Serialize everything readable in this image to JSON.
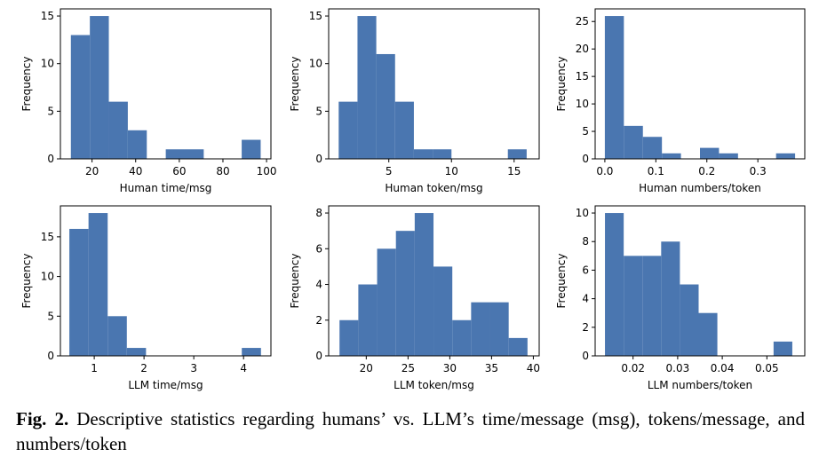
{
  "caption": {
    "label": "Fig. 2.",
    "text": "Descriptive statistics regarding humans’ vs. LLM’s time/message (msg), tokens/message, and numbers/token"
  },
  "colors": {
    "bar": "#4a76b0",
    "axis": "#000000"
  },
  "chart_data": [
    {
      "type": "bar",
      "subtype": "histogram",
      "xlabel": "Human time/msg",
      "ylabel": "Frequency",
      "xlim": [
        5.5,
        102
      ],
      "ylim": [
        0,
        15.75
      ],
      "xticks": [
        20,
        40,
        60,
        80,
        100
      ],
      "yticks": [
        0,
        5,
        10,
        15
      ],
      "bins": [
        {
          "x0": 10.3,
          "x1": 19.0,
          "value": 13
        },
        {
          "x0": 19.0,
          "x1": 27.7,
          "value": 15
        },
        {
          "x0": 27.7,
          "x1": 36.4,
          "value": 6
        },
        {
          "x0": 36.4,
          "x1": 45.1,
          "value": 3
        },
        {
          "x0": 45.1,
          "x1": 53.8,
          "value": 0
        },
        {
          "x0": 53.8,
          "x1": 62.5,
          "value": 1
        },
        {
          "x0": 62.5,
          "x1": 71.2,
          "value": 1
        },
        {
          "x0": 71.2,
          "x1": 79.9,
          "value": 0
        },
        {
          "x0": 79.9,
          "x1": 88.6,
          "value": 0
        },
        {
          "x0": 88.6,
          "x1": 97.3,
          "value": 2
        }
      ]
    },
    {
      "type": "bar",
      "subtype": "histogram",
      "xlabel": "Human token/msg",
      "ylabel": "Frequency",
      "xlim": [
        0.2,
        17.0
      ],
      "ylim": [
        0,
        15.75
      ],
      "xticks": [
        5,
        10,
        15
      ],
      "yticks": [
        0,
        5,
        10,
        15
      ],
      "bins": [
        {
          "x0": 1.0,
          "x1": 2.5,
          "value": 6
        },
        {
          "x0": 2.5,
          "x1": 4.0,
          "value": 15
        },
        {
          "x0": 4.0,
          "x1": 5.5,
          "value": 11
        },
        {
          "x0": 5.5,
          "x1": 7.0,
          "value": 6
        },
        {
          "x0": 7.0,
          "x1": 8.5,
          "value": 1
        },
        {
          "x0": 8.5,
          "x1": 10.0,
          "value": 1
        },
        {
          "x0": 10.0,
          "x1": 11.5,
          "value": 0
        },
        {
          "x0": 11.5,
          "x1": 13.0,
          "value": 0
        },
        {
          "x0": 13.0,
          "x1": 14.5,
          "value": 0
        },
        {
          "x0": 14.5,
          "x1": 16.0,
          "value": 1
        }
      ]
    },
    {
      "type": "bar",
      "subtype": "histogram",
      "xlabel": "Human numbers/token",
      "ylabel": "Frequency",
      "xlim": [
        -0.019,
        0.392
      ],
      "ylim": [
        0,
        27.3
      ],
      "xticks": [
        0.0,
        0.1,
        0.2,
        0.3
      ],
      "yticks": [
        0,
        5,
        10,
        15,
        20,
        25
      ],
      "tick_format": 1,
      "bins": [
        {
          "x0": 0.0,
          "x1": 0.0373,
          "value": 26
        },
        {
          "x0": 0.0373,
          "x1": 0.0746,
          "value": 6
        },
        {
          "x0": 0.0746,
          "x1": 0.1119,
          "value": 4
        },
        {
          "x0": 0.1119,
          "x1": 0.1492,
          "value": 1
        },
        {
          "x0": 0.1492,
          "x1": 0.1865,
          "value": 0
        },
        {
          "x0": 0.1865,
          "x1": 0.2238,
          "value": 2
        },
        {
          "x0": 0.2238,
          "x1": 0.2611,
          "value": 1
        },
        {
          "x0": 0.2611,
          "x1": 0.2984,
          "value": 0
        },
        {
          "x0": 0.2984,
          "x1": 0.3357,
          "value": 0
        },
        {
          "x0": 0.3357,
          "x1": 0.373,
          "value": 1
        }
      ]
    },
    {
      "type": "bar",
      "subtype": "histogram",
      "xlabel": "LLM time/msg",
      "ylabel": "Frequency",
      "xlim": [
        0.32,
        4.55
      ],
      "ylim": [
        0,
        18.9
      ],
      "xticks": [
        1,
        2,
        3,
        4
      ],
      "yticks": [
        0,
        5,
        10,
        15
      ],
      "bins": [
        {
          "x0": 0.5,
          "x1": 0.885,
          "value": 16
        },
        {
          "x0": 0.885,
          "x1": 1.27,
          "value": 18
        },
        {
          "x0": 1.27,
          "x1": 1.655,
          "value": 5
        },
        {
          "x0": 1.655,
          "x1": 2.04,
          "value": 1
        },
        {
          "x0": 2.04,
          "x1": 2.425,
          "value": 0
        },
        {
          "x0": 2.425,
          "x1": 2.81,
          "value": 0
        },
        {
          "x0": 2.81,
          "x1": 3.195,
          "value": 0
        },
        {
          "x0": 3.195,
          "x1": 3.58,
          "value": 0
        },
        {
          "x0": 3.58,
          "x1": 3.965,
          "value": 0
        },
        {
          "x0": 3.965,
          "x1": 4.35,
          "value": 1
        }
      ]
    },
    {
      "type": "bar",
      "subtype": "histogram",
      "xlabel": "LLM token/msg",
      "ylabel": "Frequency",
      "xlim": [
        15.5,
        40.7
      ],
      "ylim": [
        0,
        8.4
      ],
      "xticks": [
        20,
        25,
        30,
        35,
        40
      ],
      "yticks": [
        0,
        2,
        4,
        6,
        8
      ],
      "bins": [
        {
          "x0": 16.8,
          "x1": 19.05,
          "value": 2
        },
        {
          "x0": 19.05,
          "x1": 21.3,
          "value": 4
        },
        {
          "x0": 21.3,
          "x1": 23.55,
          "value": 6
        },
        {
          "x0": 23.55,
          "x1": 25.8,
          "value": 7
        },
        {
          "x0": 25.8,
          "x1": 28.05,
          "value": 8
        },
        {
          "x0": 28.05,
          "x1": 30.3,
          "value": 5
        },
        {
          "x0": 30.3,
          "x1": 32.55,
          "value": 2
        },
        {
          "x0": 32.55,
          "x1": 34.8,
          "value": 3
        },
        {
          "x0": 34.8,
          "x1": 37.05,
          "value": 3
        },
        {
          "x0": 37.05,
          "x1": 39.3,
          "value": 1
        }
      ]
    },
    {
      "type": "bar",
      "subtype": "histogram",
      "xlabel": "LLM numbers/token",
      "ylabel": "Frequency",
      "xlim": [
        0.0115,
        0.0585
      ],
      "ylim": [
        0,
        10.5
      ],
      "xticks": [
        0.02,
        0.03,
        0.04,
        0.05
      ],
      "yticks": [
        0,
        2,
        4,
        6,
        8,
        10
      ],
      "tick_format": 2,
      "bins": [
        {
          "x0": 0.0137,
          "x1": 0.0179,
          "value": 10
        },
        {
          "x0": 0.0179,
          "x1": 0.0221,
          "value": 7
        },
        {
          "x0": 0.0221,
          "x1": 0.0263,
          "value": 7
        },
        {
          "x0": 0.0263,
          "x1": 0.0305,
          "value": 8
        },
        {
          "x0": 0.0305,
          "x1": 0.0347,
          "value": 5
        },
        {
          "x0": 0.0347,
          "x1": 0.0389,
          "value": 3
        },
        {
          "x0": 0.0389,
          "x1": 0.0431,
          "value": 0
        },
        {
          "x0": 0.0431,
          "x1": 0.0473,
          "value": 0
        },
        {
          "x0": 0.0473,
          "x1": 0.0515,
          "value": 0
        },
        {
          "x0": 0.0515,
          "x1": 0.0557,
          "value": 1
        }
      ]
    }
  ]
}
